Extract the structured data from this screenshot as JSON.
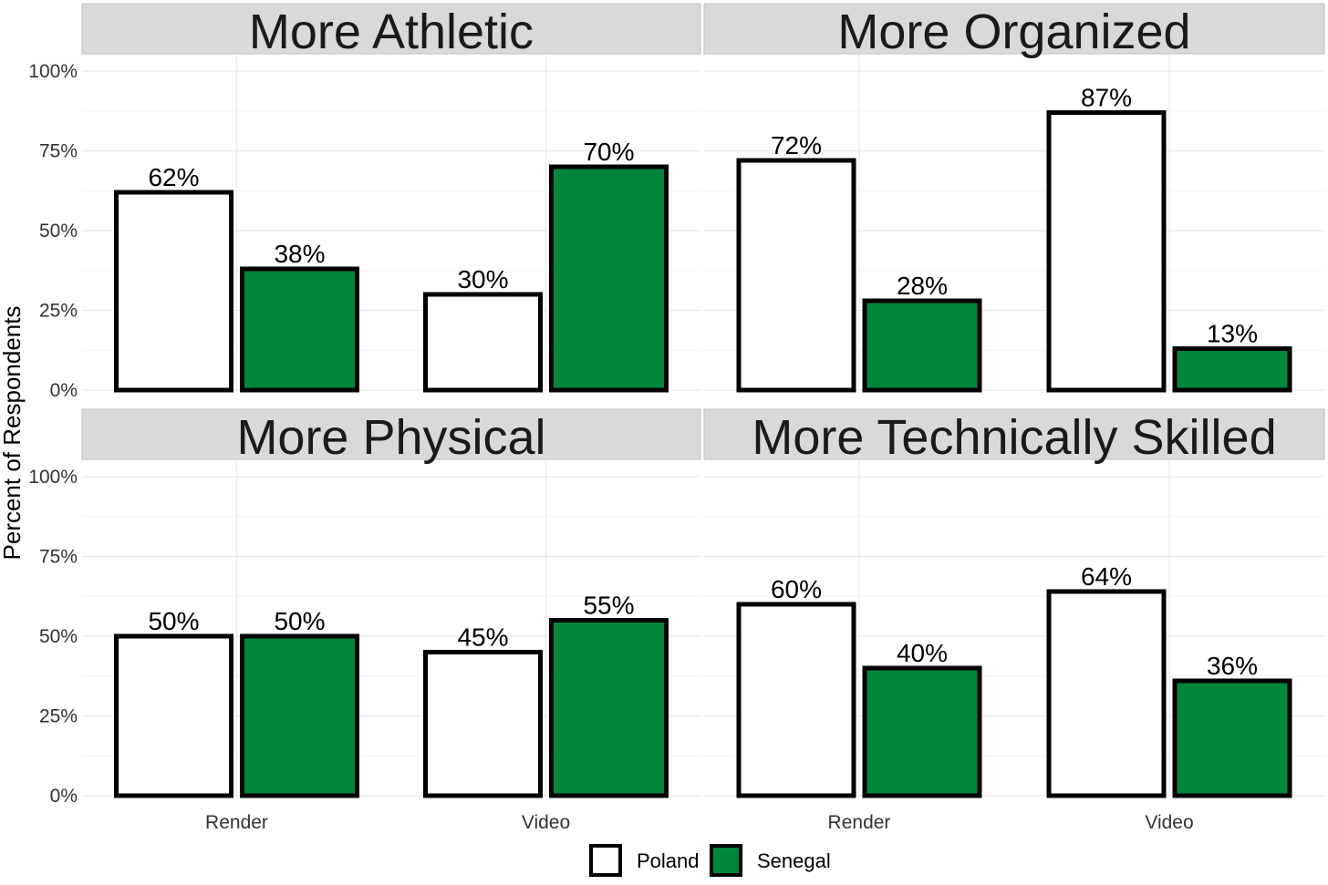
{
  "chart_data": {
    "type": "bar",
    "ylabel": "Percent of Respondents",
    "ylim": [
      0,
      100
    ],
    "yticks": [
      "0%",
      "25%",
      "50%",
      "75%",
      "100%"
    ],
    "categories": [
      "Render",
      "Video"
    ],
    "legend": {
      "placement": "bottom",
      "entries": [
        {
          "name": "Poland",
          "color": "#ffffff"
        },
        {
          "name": "Senegal",
          "color": "#00873c"
        }
      ]
    },
    "grid": true,
    "panels": [
      {
        "title": "More Athletic",
        "series": [
          {
            "name": "Poland",
            "values": [
              62,
              30
            ],
            "labels": [
              "62%",
              "30%"
            ]
          },
          {
            "name": "Senegal",
            "values": [
              38,
              70
            ],
            "labels": [
              "38%",
              "70%"
            ]
          }
        ]
      },
      {
        "title": "More Organized",
        "series": [
          {
            "name": "Poland",
            "values": [
              72,
              87
            ],
            "labels": [
              "72%",
              "87%"
            ]
          },
          {
            "name": "Senegal",
            "values": [
              28,
              13
            ],
            "labels": [
              "28%",
              "13%"
            ]
          }
        ]
      },
      {
        "title": "More Physical",
        "series": [
          {
            "name": "Poland",
            "values": [
              50,
              45
            ],
            "labels": [
              "50%",
              "45%"
            ]
          },
          {
            "name": "Senegal",
            "values": [
              50,
              55
            ],
            "labels": [
              "50%",
              "55%"
            ]
          }
        ]
      },
      {
        "title": "More Technically Skilled",
        "series": [
          {
            "name": "Poland",
            "values": [
              60,
              64
            ],
            "labels": [
              "60%",
              "64%"
            ]
          },
          {
            "name": "Senegal",
            "values": [
              40,
              36
            ],
            "labels": [
              "40%",
              "36%"
            ]
          }
        ]
      }
    ]
  }
}
